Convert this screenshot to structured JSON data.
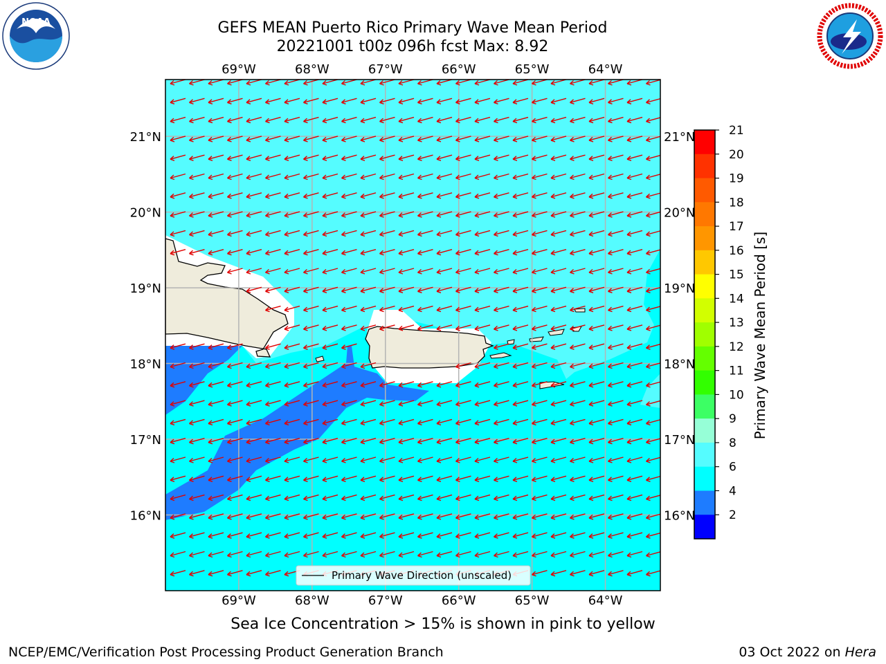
{
  "header": {
    "title_line1": "GEFS MEAN Puerto Rico Primary Wave Mean Period",
    "title_line2": "20221001 t00z 096h fcst   Max: 8.92"
  },
  "logos": {
    "left": {
      "name": "noaa-logo",
      "text": "NOAA",
      "ring_text": "NATIONAL OCEANIC AND ATMOSPHERIC ADMINISTRATION · U.S. DEPARTMENT OF COMMERCE"
    },
    "right": {
      "name": "nws-logo",
      "ring_text": "NATIONAL WEATHER SERVICE"
    }
  },
  "map": {
    "top_lon_labels": [
      "69°W",
      "68°W",
      "67°W",
      "66°W",
      "65°W",
      "64°W"
    ],
    "bottom_lon_labels": [
      "69°W",
      "68°W",
      "67°W",
      "66°W",
      "65°W",
      "64°W"
    ],
    "left_lat_labels": [
      "21°N",
      "20°N",
      "19°N",
      "18°N",
      "17°N",
      "16°N"
    ],
    "right_lat_labels": [
      "21°N",
      "20°N",
      "19°N",
      "18°N",
      "17°N",
      "16°N"
    ],
    "lon_values": [
      -69,
      -68,
      -67,
      -66,
      -65,
      -64
    ],
    "lat_values": [
      21,
      20,
      19,
      18,
      17,
      16
    ],
    "lon_range": [
      -70,
      -63.25
    ],
    "lat_range": [
      15,
      21.75
    ],
    "legend_label": "Primary Wave Direction (unscaled)",
    "colors": {
      "land": "#efecdc",
      "field_6_8": "#00ffff",
      "field_8_9": "#55fcff",
      "field_4_6": "#1e7cff",
      "arrow": "#e00000",
      "grid": "#b4b4b4"
    },
    "wave_direction": "westward, slightly south"
  },
  "colorbar": {
    "label": "Primary Wave Mean Period [s]",
    "ticks": [
      "21",
      "20",
      "19",
      "18",
      "17",
      "16",
      "15",
      "14",
      "13",
      "12",
      "11",
      "10",
      "9",
      "8",
      "6",
      "4",
      "2"
    ],
    "colors_top_to_bottom": [
      "#ff0000",
      "#ff3200",
      "#ff5a00",
      "#ff7800",
      "#ff9600",
      "#ffc800",
      "#ffff00",
      "#d2ff00",
      "#a0ff00",
      "#64ff00",
      "#32ff00",
      "#3cff64",
      "#96ffd7",
      "#55fcff",
      "#00ffff",
      "#1e7cff",
      "#0000ff"
    ]
  },
  "caption": "Sea Ice Concentration > 15% is shown in pink to yellow",
  "footer": {
    "left": "NCEP/EMC/Verification Post Processing Product Generation Branch",
    "right_date": "03 Oct 2022 on ",
    "right_host": "Hera"
  }
}
